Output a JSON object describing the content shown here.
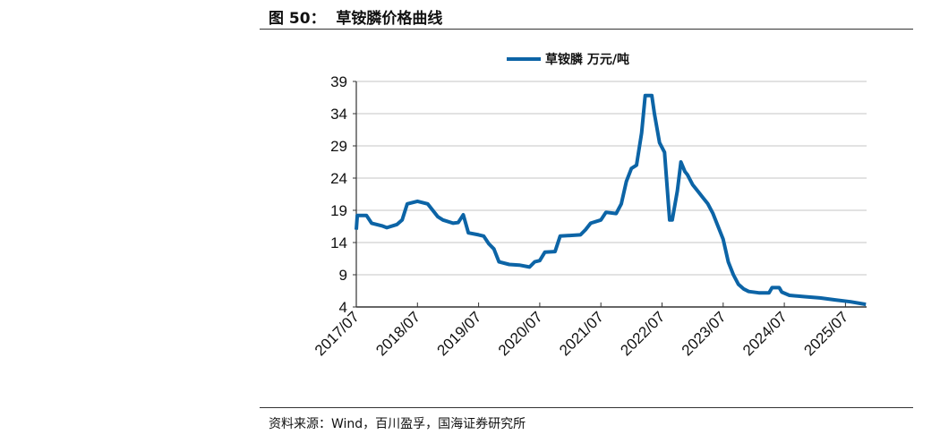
{
  "figure_title": "图 50：  草铵膦价格曲线",
  "source": "资料来源：Wind，百川盈孚，国海证券研究所",
  "colors": {
    "series": "#0c64a6",
    "grid": "#d9d9d9"
  },
  "chart_data": {
    "type": "line",
    "title": "",
    "xlabel": "",
    "ylabel": "",
    "ylim": [
      4,
      39
    ],
    "yticks": [
      4,
      9,
      14,
      19,
      24,
      29,
      34,
      39
    ],
    "xticks": [
      "2017/07",
      "2018/07",
      "2019/07",
      "2020/07",
      "2021/07",
      "2022/07",
      "2023/07",
      "2024/07",
      "2025/07"
    ],
    "grid": "horizontal",
    "legend_position": "top-center",
    "series": [
      {
        "name": "草铵膦 万元/吨",
        "points": [
          [
            "2017-07",
            16
          ],
          [
            "2017-07.2",
            18.2
          ],
          [
            "2017-09",
            18.2
          ],
          [
            "2017-10",
            17
          ],
          [
            "2017-12",
            16.6
          ],
          [
            "2018-01",
            16.3
          ],
          [
            "2018-03",
            16.8
          ],
          [
            "2018-04",
            17.5
          ],
          [
            "2018-05",
            20
          ],
          [
            "2018-07",
            20.4
          ],
          [
            "2018-09",
            20
          ],
          [
            "2018-10",
            19
          ],
          [
            "2018-11",
            18
          ],
          [
            "2018-12",
            17.5
          ],
          [
            "2019-02",
            17
          ],
          [
            "2019-03",
            17.1
          ],
          [
            "2019-04",
            18.3
          ],
          [
            "2019-05",
            15.5
          ],
          [
            "2019-07",
            15.2
          ],
          [
            "2019-08",
            15
          ],
          [
            "2019-09",
            13.8
          ],
          [
            "2019-10",
            13
          ],
          [
            "2019-11",
            11
          ],
          [
            "2020-01",
            10.6
          ],
          [
            "2020-03",
            10.5
          ],
          [
            "2020-05",
            10.2
          ],
          [
            "2020-06",
            11
          ],
          [
            "2020-07",
            11.2
          ],
          [
            "2020-08",
            12.5
          ],
          [
            "2020-10",
            12.6
          ],
          [
            "2020-11",
            15
          ],
          [
            "2021-03",
            15.2
          ],
          [
            "2021-04",
            16
          ],
          [
            "2021-05",
            17
          ],
          [
            "2021-07",
            17.5
          ],
          [
            "2021-08",
            18.7
          ],
          [
            "2021-10",
            18.5
          ],
          [
            "2021-11",
            20
          ],
          [
            "2021-12",
            23.5
          ],
          [
            "2022-01",
            25.5
          ],
          [
            "2022-02",
            26
          ],
          [
            "2022-03",
            31
          ],
          [
            "2022-03.7",
            36.8
          ],
          [
            "2022-05",
            36.8
          ],
          [
            "2022-05.5",
            34
          ],
          [
            "2022-06.5",
            29.5
          ],
          [
            "2022-07.5",
            28
          ],
          [
            "2022-08.5",
            17.5
          ],
          [
            "2022-09",
            17.5
          ],
          [
            "2022-10",
            22
          ],
          [
            "2022-10.7",
            26.5
          ],
          [
            "2022-11.5",
            25
          ],
          [
            "2022-12",
            24.5
          ],
          [
            "2023-01",
            23
          ],
          [
            "2023-02",
            22
          ],
          [
            "2023-03",
            21
          ],
          [
            "2023-04",
            20
          ],
          [
            "2023-05",
            18.5
          ],
          [
            "2023-06",
            16.5
          ],
          [
            "2023-07",
            14.5
          ],
          [
            "2023-08",
            11
          ],
          [
            "2023-09",
            9
          ],
          [
            "2023-10",
            7.5
          ],
          [
            "2023-11",
            6.8
          ],
          [
            "2023-12",
            6.4
          ],
          [
            "2024-02",
            6.2
          ],
          [
            "2024-04",
            6.2
          ],
          [
            "2024-04.6",
            7
          ],
          [
            "2024-06",
            7
          ],
          [
            "2024-06.5",
            6.3
          ],
          [
            "2024-08",
            5.8
          ],
          [
            "2024-11",
            5.6
          ],
          [
            "2025-02",
            5.4
          ],
          [
            "2025-05",
            5.1
          ],
          [
            "2025-08",
            4.8
          ],
          [
            "2025-11",
            4.4
          ]
        ]
      }
    ]
  }
}
